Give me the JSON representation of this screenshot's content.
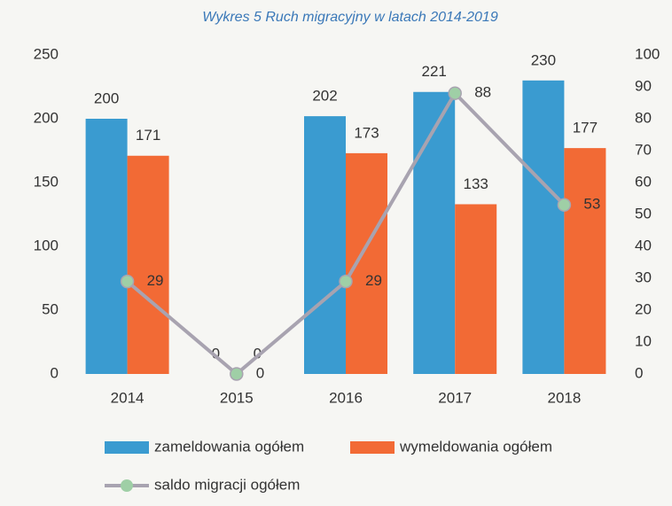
{
  "chart_data": {
    "type": "bar",
    "title": "Wykres 5 Ruch migracyjny w latach 2014-2019",
    "categories": [
      "2014",
      "2015",
      "2016",
      "2017",
      "2018"
    ],
    "series": [
      {
        "name": "zameldowania ogółem",
        "color": "#3a9bd0",
        "type": "bar",
        "values": [
          200,
          0,
          202,
          221,
          230
        ]
      },
      {
        "name": "wymeldowania ogółem",
        "color": "#f26a35",
        "type": "bar",
        "values": [
          171,
          0,
          173,
          133,
          177
        ]
      },
      {
        "name": "saldo migracji ogółem",
        "color": "#a8a3b0",
        "marker_color": "#9fcfa6",
        "type": "line",
        "axis": "y2",
        "values": [
          29,
          0,
          29,
          88,
          53
        ]
      }
    ],
    "ylim": [
      0,
      250
    ],
    "yticks": [
      0,
      50,
      100,
      150,
      200,
      250
    ],
    "y2lim": [
      0,
      100
    ],
    "y2ticks": [
      0,
      10,
      20,
      30,
      40,
      50,
      60,
      70,
      80,
      90,
      100
    ],
    "grid": false,
    "legend": "bottom"
  }
}
